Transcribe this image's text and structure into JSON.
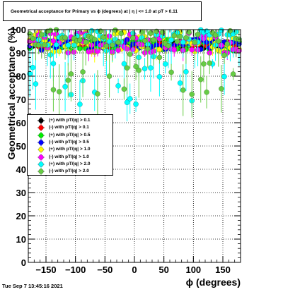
{
  "chart_data": {
    "type": "scatter",
    "title": "Geometrical acceptance for Primary vs ϕ (degrees) at |  η | <= 1.0 at pT > 0.11",
    "xlabel": "ϕ (degrees)",
    "ylabel": "Geometrical acceptance (%)",
    "xlim": [
      -180,
      180
    ],
    "ylim": [
      0,
      100
    ],
    "x_ticks": [
      "−150",
      "−100",
      "−50",
      "0",
      "50",
      "100",
      "150"
    ],
    "y_ticks": [
      "0",
      "10",
      "20",
      "30",
      "40",
      "50",
      "60",
      "70",
      "80",
      "90",
      "100"
    ],
    "grid": true,
    "legend_position": "middle-left",
    "series": [
      {
        "name": "(+) with pT/|q| > 0.1",
        "color": "#000000",
        "y_range": [
          92,
          95
        ]
      },
      {
        "name": "(-) with pT/|q| > 0.1",
        "color": "#ff0000",
        "y_range": [
          92,
          95
        ]
      },
      {
        "name": "(+) with pT/|q| > 0.5",
        "color": "#00ee00",
        "y_range": [
          91,
          96
        ]
      },
      {
        "name": "(-) with pT/|q| > 0.5",
        "color": "#0000ff",
        "y_range": [
          91,
          96
        ]
      },
      {
        "name": "(+) with pT/|q| > 1.0",
        "color": "#ffff00",
        "y_range": [
          88,
          100
        ]
      },
      {
        "name": "(-) with pT/|q| > 1.0",
        "color": "#ff00ff",
        "y_range": [
          88,
          100
        ]
      },
      {
        "name": "(+) with pT/|q| > 2.0",
        "color": "#00ffff",
        "y_range": [
          67,
          100
        ]
      },
      {
        "name": "(-) with pT/|q| > 2.0",
        "color": "#66cc44",
        "y_range": [
          70,
          100
        ]
      }
    ]
  },
  "footer": {
    "timestamp": "Tue Sep  7 13:45:16 2021"
  }
}
